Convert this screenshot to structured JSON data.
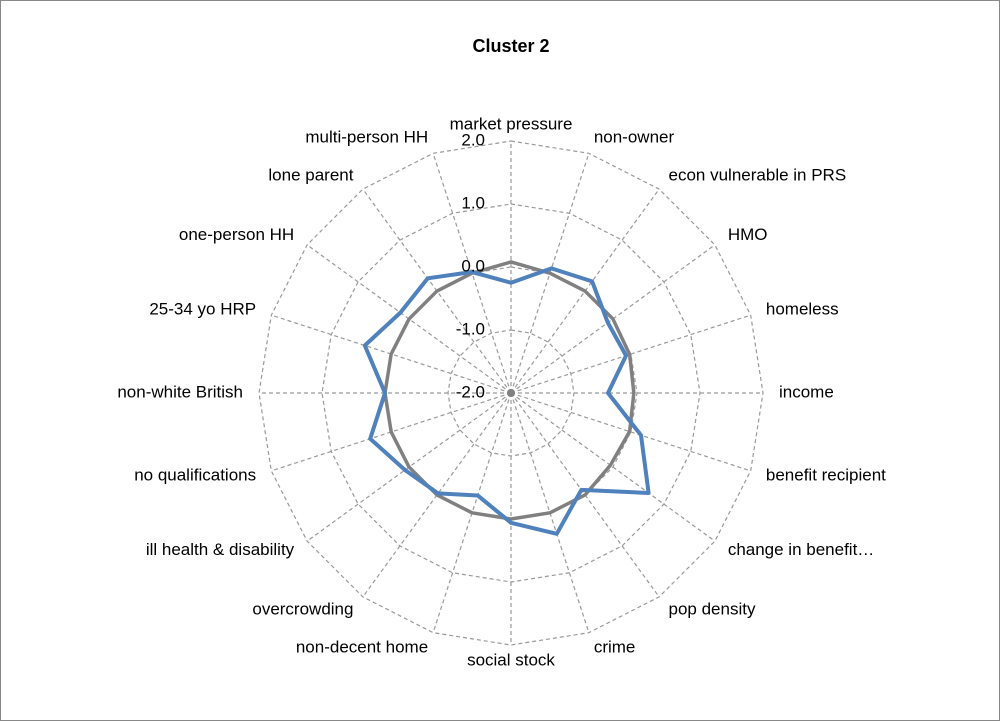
{
  "chart_data": {
    "type": "radar",
    "title": "Cluster 2",
    "categories": [
      "market pressure",
      "non-owner",
      "econ vulnerable in PRS",
      "HMO",
      "homeless",
      "income",
      "benefit recipient",
      "change in benefit…",
      "pop density",
      "crime",
      "social stock",
      "non-decent home",
      "overcrowding",
      "ill health & disability",
      "no qualifications",
      "non-white British",
      "25-34 yo HRP",
      "one-person HH",
      "lone parent",
      "multi-person HH"
    ],
    "series": [
      {
        "color": "#808080",
        "values": [
          0.08,
          0.0,
          0.0,
          0.0,
          -0.02,
          -0.05,
          -0.02,
          -0.05,
          0.0,
          0.0,
          0.0,
          0.0,
          0.0,
          0.0,
          0.0,
          0.0,
          0.0,
          0.0,
          0.0,
          0.0
        ]
      },
      {
        "color": "#4f81bd",
        "values": [
          -0.25,
          0.08,
          0.19,
          -0.1,
          -0.08,
          -0.46,
          0.17,
          0.7,
          -0.1,
          0.35,
          0.06,
          -0.29,
          -0.03,
          0.08,
          0.35,
          0.0,
          0.44,
          0.17,
          0.25,
          0.02
        ]
      }
    ],
    "ylim": [
      -2,
      2
    ],
    "yticks": [
      {
        "value": -2,
        "label": "-2.0"
      },
      {
        "value": -1,
        "label": "-1.0"
      },
      {
        "value": 0,
        "label": "0.0"
      },
      {
        "value": 1,
        "label": "1.0"
      },
      {
        "value": 2,
        "label": "2.0"
      }
    ],
    "grid": true
  }
}
